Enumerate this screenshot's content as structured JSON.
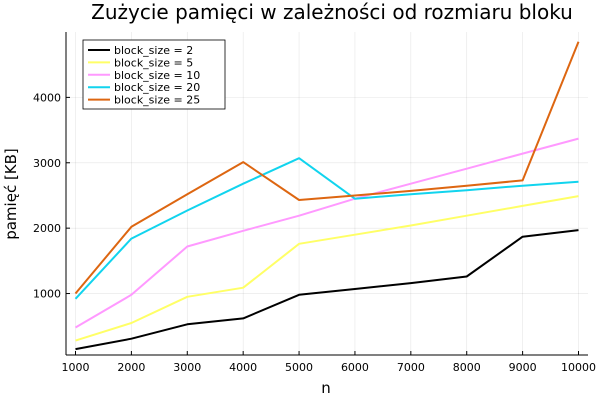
{
  "chart_data": {
    "type": "line",
    "title": "Zużycie pamięci w zależności od rozmiaru bloku",
    "xlabel": "n",
    "ylabel": "pamięć [KB]",
    "xlim": [
      830,
      10170
    ],
    "ylim": [
      60,
      5000
    ],
    "x_ticks": [
      1000,
      2000,
      3000,
      4000,
      5000,
      6000,
      7000,
      8000,
      9000,
      10000
    ],
    "y_ticks": [
      1000,
      2000,
      3000,
      4000
    ],
    "grid": true,
    "legend_position": "top-left",
    "x": [
      1000,
      2000,
      3000,
      4000,
      5000,
      6000,
      7000,
      8000,
      9000,
      10000
    ],
    "series": [
      {
        "name": "block_size = 2",
        "color": "#000000",
        "values": [
          150,
          310,
          530,
          620,
          980,
          1070,
          1160,
          1260,
          1870,
          1970
        ]
      },
      {
        "name": "block_size = 5",
        "color": "#ffff66",
        "values": [
          280,
          550,
          950,
          1090,
          1760,
          1900,
          2040,
          2190,
          2340,
          2490
        ]
      },
      {
        "name": "block_size = 10",
        "color": "#ff99ff",
        "values": [
          480,
          980,
          1720,
          1960,
          2190,
          2450,
          2680,
          2910,
          3140,
          3370
        ]
      },
      {
        "name": "block_size = 20",
        "color": "#11d4ee",
        "values": [
          920,
          1840,
          2270,
          2680,
          3070,
          2450,
          2520,
          2580,
          2650,
          2710
        ]
      },
      {
        "name": "block_size = 25",
        "color": "#dd6611",
        "values": [
          1000,
          2020,
          2520,
          3010,
          2430,
          2500,
          2570,
          2650,
          2730,
          4850
        ]
      }
    ]
  }
}
